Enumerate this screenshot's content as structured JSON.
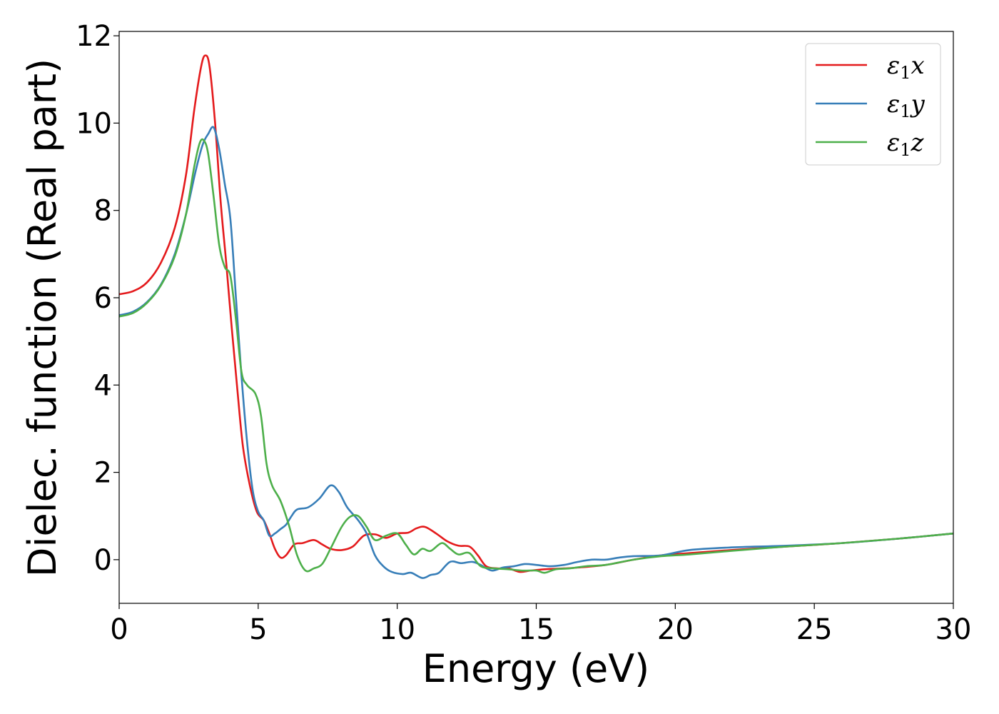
{
  "chart_data": {
    "type": "line",
    "xlabel": "Energy (eV)",
    "ylabel": "Dielec. function (Real part)",
    "xlim": [
      0,
      30
    ],
    "ylim": [
      -1,
      12.1
    ],
    "xticks": [
      0,
      5,
      10,
      15,
      20,
      25,
      30
    ],
    "yticks": [
      0,
      2,
      4,
      6,
      8,
      10,
      12
    ],
    "xtick_labels": [
      "0",
      "5",
      "10",
      "15",
      "20",
      "25",
      "30"
    ],
    "ytick_labels": [
      "0",
      "2",
      "4",
      "6",
      "8",
      "10",
      "12"
    ],
    "grid": false,
    "legend_position": "top-right",
    "series": [
      {
        "name": "ε1x",
        "legend": {
          "base": "ε",
          "sub": "1",
          "tail": "x"
        },
        "color": "#e41a1c",
        "points": [
          [
            0,
            6.08
          ],
          [
            0.5,
            6.15
          ],
          [
            1,
            6.35
          ],
          [
            1.5,
            6.8
          ],
          [
            2,
            7.6
          ],
          [
            2.4,
            8.8
          ],
          [
            2.7,
            10.3
          ],
          [
            2.95,
            11.3
          ],
          [
            3.1,
            11.55
          ],
          [
            3.25,
            11.3
          ],
          [
            3.45,
            10.0
          ],
          [
            3.65,
            8.2
          ],
          [
            3.85,
            6.8
          ],
          [
            4.05,
            5.3
          ],
          [
            4.25,
            3.9
          ],
          [
            4.45,
            2.6
          ],
          [
            4.7,
            1.7
          ],
          [
            4.95,
            1.1
          ],
          [
            5.2,
            0.9
          ],
          [
            5.4,
            0.6
          ],
          [
            5.6,
            0.25
          ],
          [
            5.8,
            0.05
          ],
          [
            6.0,
            0.1
          ],
          [
            6.3,
            0.35
          ],
          [
            6.6,
            0.38
          ],
          [
            7.0,
            0.45
          ],
          [
            7.3,
            0.35
          ],
          [
            7.6,
            0.25
          ],
          [
            8.0,
            0.22
          ],
          [
            8.4,
            0.3
          ],
          [
            8.8,
            0.55
          ],
          [
            9.2,
            0.58
          ],
          [
            9.6,
            0.5
          ],
          [
            10.0,
            0.6
          ],
          [
            10.4,
            0.62
          ],
          [
            10.7,
            0.72
          ],
          [
            11.0,
            0.75
          ],
          [
            11.4,
            0.6
          ],
          [
            11.8,
            0.42
          ],
          [
            12.2,
            0.32
          ],
          [
            12.6,
            0.3
          ],
          [
            12.9,
            0.1
          ],
          [
            13.2,
            -0.15
          ],
          [
            13.6,
            -0.2
          ],
          [
            14.0,
            -0.2
          ],
          [
            14.4,
            -0.28
          ],
          [
            14.8,
            -0.25
          ],
          [
            15.3,
            -0.22
          ],
          [
            16.0,
            -0.2
          ],
          [
            16.5,
            -0.18
          ],
          [
            17.5,
            -0.12
          ],
          [
            18.5,
            0.0
          ],
          [
            19.5,
            0.1
          ],
          [
            20.5,
            0.15
          ],
          [
            22.0,
            0.22
          ],
          [
            24.0,
            0.3
          ],
          [
            26.0,
            0.38
          ],
          [
            28.0,
            0.48
          ],
          [
            30.0,
            0.6
          ]
        ]
      },
      {
        "name": "ε1y",
        "legend": {
          "base": "ε",
          "sub": "1",
          "tail": "y"
        },
        "color": "#377eb8",
        "points": [
          [
            0,
            5.6
          ],
          [
            0.5,
            5.68
          ],
          [
            1,
            5.9
          ],
          [
            1.5,
            6.3
          ],
          [
            2,
            7.0
          ],
          [
            2.4,
            7.9
          ],
          [
            2.75,
            8.9
          ],
          [
            3.0,
            9.5
          ],
          [
            3.2,
            9.75
          ],
          [
            3.4,
            9.9
          ],
          [
            3.6,
            9.4
          ],
          [
            3.8,
            8.6
          ],
          [
            4.0,
            7.8
          ],
          [
            4.2,
            6.0
          ],
          [
            4.4,
            4.2
          ],
          [
            4.6,
            2.7
          ],
          [
            4.8,
            1.6
          ],
          [
            5.0,
            1.1
          ],
          [
            5.2,
            0.9
          ],
          [
            5.4,
            0.55
          ],
          [
            5.6,
            0.6
          ],
          [
            5.8,
            0.7
          ],
          [
            6.0,
            0.8
          ],
          [
            6.2,
            1.0
          ],
          [
            6.4,
            1.15
          ],
          [
            6.8,
            1.2
          ],
          [
            7.2,
            1.4
          ],
          [
            7.6,
            1.7
          ],
          [
            7.9,
            1.55
          ],
          [
            8.2,
            1.2
          ],
          [
            8.6,
            0.9
          ],
          [
            8.9,
            0.6
          ],
          [
            9.2,
            0.1
          ],
          [
            9.5,
            -0.15
          ],
          [
            9.8,
            -0.28
          ],
          [
            10.2,
            -0.33
          ],
          [
            10.5,
            -0.3
          ],
          [
            10.9,
            -0.42
          ],
          [
            11.2,
            -0.35
          ],
          [
            11.5,
            -0.3
          ],
          [
            11.9,
            -0.05
          ],
          [
            12.3,
            -0.08
          ],
          [
            12.7,
            -0.05
          ],
          [
            13.0,
            -0.12
          ],
          [
            13.4,
            -0.25
          ],
          [
            13.8,
            -0.18
          ],
          [
            14.2,
            -0.15
          ],
          [
            14.6,
            -0.1
          ],
          [
            15.0,
            -0.12
          ],
          [
            15.5,
            -0.15
          ],
          [
            16.0,
            -0.12
          ],
          [
            16.5,
            -0.05
          ],
          [
            17.0,
            0.0
          ],
          [
            17.5,
            0.0
          ],
          [
            18.0,
            0.05
          ],
          [
            18.5,
            0.08
          ],
          [
            19.5,
            0.1
          ],
          [
            20.5,
            0.22
          ],
          [
            22.0,
            0.28
          ],
          [
            24.0,
            0.32
          ],
          [
            26.0,
            0.38
          ],
          [
            28.0,
            0.48
          ],
          [
            30.0,
            0.6
          ]
        ]
      },
      {
        "name": "ε1z",
        "legend": {
          "base": "ε",
          "sub": "1",
          "tail": "z"
        },
        "color": "#4daf4a",
        "points": [
          [
            0,
            5.57
          ],
          [
            0.5,
            5.65
          ],
          [
            1,
            5.88
          ],
          [
            1.5,
            6.28
          ],
          [
            2,
            6.95
          ],
          [
            2.4,
            7.9
          ],
          [
            2.7,
            9.0
          ],
          [
            2.9,
            9.55
          ],
          [
            3.05,
            9.6
          ],
          [
            3.2,
            9.3
          ],
          [
            3.4,
            8.3
          ],
          [
            3.6,
            7.2
          ],
          [
            3.8,
            6.7
          ],
          [
            4.0,
            6.5
          ],
          [
            4.2,
            5.5
          ],
          [
            4.4,
            4.3
          ],
          [
            4.6,
            4.0
          ],
          [
            4.9,
            3.8
          ],
          [
            5.1,
            3.3
          ],
          [
            5.3,
            2.2
          ],
          [
            5.5,
            1.7
          ],
          [
            5.8,
            1.35
          ],
          [
            6.1,
            0.8
          ],
          [
            6.4,
            0.1
          ],
          [
            6.7,
            -0.25
          ],
          [
            7.0,
            -0.2
          ],
          [
            7.3,
            -0.1
          ],
          [
            7.6,
            0.25
          ],
          [
            8.0,
            0.75
          ],
          [
            8.3,
            0.98
          ],
          [
            8.6,
            1.0
          ],
          [
            8.9,
            0.75
          ],
          [
            9.2,
            0.45
          ],
          [
            9.6,
            0.55
          ],
          [
            10.0,
            0.6
          ],
          [
            10.3,
            0.35
          ],
          [
            10.6,
            0.12
          ],
          [
            10.9,
            0.25
          ],
          [
            11.2,
            0.2
          ],
          [
            11.6,
            0.38
          ],
          [
            11.9,
            0.25
          ],
          [
            12.2,
            0.12
          ],
          [
            12.6,
            0.15
          ],
          [
            13.0,
            -0.15
          ],
          [
            13.5,
            -0.2
          ],
          [
            14.0,
            -0.22
          ],
          [
            14.5,
            -0.25
          ],
          [
            15.0,
            -0.25
          ],
          [
            15.3,
            -0.3
          ],
          [
            15.7,
            -0.22
          ],
          [
            16.2,
            -0.2
          ],
          [
            16.8,
            -0.15
          ],
          [
            17.5,
            -0.12
          ],
          [
            18.5,
            0.0
          ],
          [
            19.5,
            0.08
          ],
          [
            20.5,
            0.12
          ],
          [
            22.0,
            0.2
          ],
          [
            24.0,
            0.3
          ],
          [
            26.0,
            0.38
          ],
          [
            28.0,
            0.48
          ],
          [
            30.0,
            0.6
          ]
        ]
      }
    ]
  }
}
